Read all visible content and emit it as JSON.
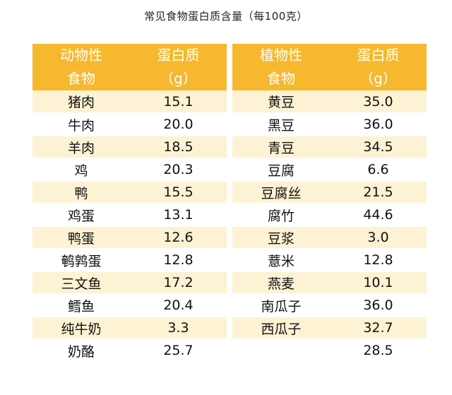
{
  "title": "常见食物蛋白质含量（每100克）",
  "colors": {
    "header_bg": "#f5b82e",
    "header_text": "#ffffff",
    "row_stripe": "#fdf2d3",
    "row_plain": "#ffffff"
  },
  "animal": {
    "header": {
      "col1_line1": "动物性",
      "col1_line2": "食物",
      "col2_line1": "蛋白质",
      "col2_line2": "（g）"
    },
    "rows": [
      {
        "food": "猪肉",
        "protein": "15.1"
      },
      {
        "food": "牛肉",
        "protein": "20.0"
      },
      {
        "food": "羊肉",
        "protein": "18.5"
      },
      {
        "food": "鸡",
        "protein": "20.3"
      },
      {
        "food": "鸭",
        "protein": "15.5"
      },
      {
        "food": "鸡蛋",
        "protein": "13.1"
      },
      {
        "food": "鸭蛋",
        "protein": "12.6"
      },
      {
        "food": "鹌鹑蛋",
        "protein": "12.8"
      },
      {
        "food": "三文鱼",
        "protein": "17.2"
      },
      {
        "food": "鳕鱼",
        "protein": "20.4"
      },
      {
        "food": "纯牛奶",
        "protein": "3.3"
      },
      {
        "food": "奶酪",
        "protein": "25.7"
      }
    ]
  },
  "plant": {
    "header": {
      "col1_line1": "植物性",
      "col1_line2": "食物",
      "col2_line1": "蛋白质",
      "col2_line2": "（g）"
    },
    "rows": [
      {
        "food": "黄豆",
        "protein": "35.0"
      },
      {
        "food": "黑豆",
        "protein": "36.0"
      },
      {
        "food": "青豆",
        "protein": "34.5"
      },
      {
        "food": "豆腐",
        "protein": "6.6"
      },
      {
        "food": "豆腐丝",
        "protein": "21.5"
      },
      {
        "food": "腐竹",
        "protein": "44.6"
      },
      {
        "food": "豆浆",
        "protein": "3.0"
      },
      {
        "food": "薏米",
        "protein": "12.8"
      },
      {
        "food": "燕麦",
        "protein": "10.1"
      },
      {
        "food": "南瓜子",
        "protein": "36.0"
      },
      {
        "food": "西瓜子",
        "protein": "32.7"
      },
      {
        "food": "",
        "protein": "28.5"
      }
    ]
  }
}
